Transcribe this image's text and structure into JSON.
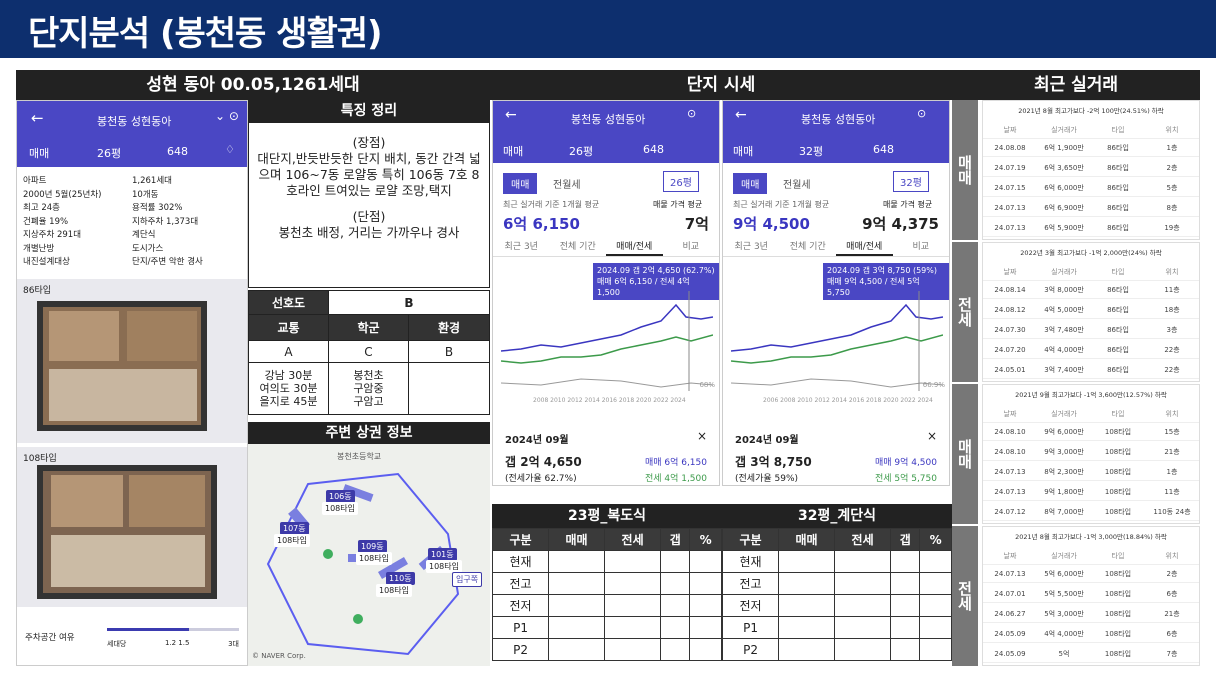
{
  "title": "단지분석 (봉천동 생활권)",
  "col1": {
    "header": "성현 동아 00.05,1261세대",
    "phone": {
      "title": "봉천동 성현동아",
      "deal": "매매",
      "size": "26평",
      "count": "648",
      "specs_left": [
        "아파트",
        "2000년 5월(25년차)",
        "최고 24층",
        "건폐율 19%",
        "지상주차 291대",
        "개별난방",
        "내진설계대상"
      ],
      "specs_right": [
        "1,261세대",
        "10개동",
        "용적률 302%",
        "지하주차 1,373대",
        "계단식",
        "도시가스",
        "단지/주변 악한 경사"
      ],
      "plan1": "86타입",
      "plan2": "108타입",
      "parking": "주차공간 여유",
      "parking_scale": [
        "세대당",
        "1.2 1.5",
        "3대"
      ]
    }
  },
  "col2": {
    "header": "특징 정리",
    "pros_title": "(장점)",
    "pros": "대단지,반듯반듯한 단지 배치, 동간 간격 넓으며 106~7동 로얄동 특히 106동 7호 8호라인 트여있는 로얄 조망,택지",
    "cons_title": "(단점)",
    "cons": "봉천초 배정, 거리는 가까우나 경사",
    "pref_label": "선호도",
    "pref_value": "B",
    "cat": [
      "교통",
      "학군",
      "환경"
    ],
    "grades": [
      "A",
      "C",
      "B"
    ],
    "traffic": [
      "강남 30분",
      "여의도 30분",
      "을지로 45분"
    ],
    "school": [
      "봉천초",
      "구암중",
      "구암고"
    ],
    "map_header": "주변 상권 정보",
    "map_labels": [
      "봉천초등학교",
      "106동",
      "108타입",
      "107동",
      "108타입",
      "109동",
      "108타입",
      "101동",
      "110동",
      "108타입",
      "108타입",
      "입구쪽"
    ],
    "map_credit": "© NAVER Corp."
  },
  "col3": {
    "header": "단지 시세",
    "p1": {
      "title": "봉천동 성현동아",
      "deal": "매매",
      "size": "26평",
      "count": "648",
      "tab1": "매매",
      "tab2": "전월세",
      "sel": "26평",
      "avg_label": "최근 실거래 기준 1개월 평균",
      "price": "6억 6,150",
      "ask_label": "매물 가격 평균",
      "ask": "7억",
      "tabs": [
        "최근 3년",
        "전체 기간",
        "매매/전세",
        "비교"
      ],
      "tip1": "2024.09 갭 2억 4,650 (62.7%)",
      "tip2": "매매 6억 6,150 / 전세 4억 1,500",
      "month": "2024년 09월",
      "gap": "갭 2억 4,650",
      "ratio": "(전세가율 62.7%)",
      "sale": "매매 6억 6,150",
      "jeonse": "전세 4억 1,500",
      "years": "2008 2010 2012 2014 2016 2018 2020 2022 2024",
      "pct": "68%",
      "table_title": "23평_복도식"
    },
    "p2": {
      "title": "봉천동 성현동아",
      "deal": "매매",
      "size": "32평",
      "count": "648",
      "tab1": "매매",
      "tab2": "전월세",
      "sel": "32평",
      "avg_label": "최근 실거래 기준 1개월 평균",
      "price": "9억 4,500",
      "ask_label": "매물 가격 평균",
      "ask": "9억 4,375",
      "tabs": [
        "최근 3년",
        "전체 기간",
        "매매/전세",
        "비교"
      ],
      "tip1": "2024.09 갭 3억 8,750 (59%)",
      "tip2": "매매 9억 4,500 / 전세 5억 5,750",
      "month": "2024년 09월",
      "gap": "갭 3억 8,750",
      "ratio": "(전세가율 59%)",
      "sale": "매매 9억 4,500",
      "jeonse": "전세 5억 5,750",
      "years": "2006 2008 2010 2012 2014 2016 2018 2020 2022 2024",
      "pct": "66.9%",
      "table_title": "32평_계단식"
    },
    "grid_head": [
      "구분",
      "매매",
      "전세",
      "갭",
      "%"
    ],
    "grid_rows": [
      "현재",
      "전고",
      "전저",
      "P1",
      "P2"
    ]
  },
  "col4": {
    "header": "최근 실거래",
    "side": [
      "매매",
      "전세",
      "매매",
      "전세"
    ],
    "blocks": [
      {
        "note": "2021년 8월 최고가보다 -2억 100만(24.51%) 하락",
        "rows": [
          [
            "24.08.08",
            "6억 1,900만",
            "86타입",
            "1층"
          ],
          [
            "24.07.19",
            "6억 3,650만",
            "86타입",
            "2층"
          ],
          [
            "24.07.15",
            "6억 6,000만",
            "86타입",
            "5층"
          ],
          [
            "24.07.13",
            "6억 6,900만",
            "86타입",
            "8층"
          ],
          [
            "24.07.13",
            "6억 5,900만",
            "86타입",
            "19층"
          ]
        ]
      },
      {
        "note": "2022년 3월 최고가보다 -1억 2,000만(24%) 하락",
        "rows": [
          [
            "24.08.14",
            "3억 8,000만",
            "86타입",
            "11층"
          ],
          [
            "24.08.12",
            "4억 5,000만",
            "86타입",
            "18층"
          ],
          [
            "24.07.30",
            "3억 7,480만",
            "86타입",
            "3층"
          ],
          [
            "24.07.20",
            "4억 4,000만",
            "86타입",
            "22층"
          ],
          [
            "24.05.01",
            "3억 7,400만",
            "86타입",
            "22층"
          ]
        ]
      },
      {
        "note": "2021년 9월 최고가보다 -1억 3,600만(12.57%) 하락",
        "rows": [
          [
            "24.08.10",
            "9억 6,000만",
            "108타입",
            "15층"
          ],
          [
            "24.08.10",
            "9억 3,000만",
            "108타입",
            "21층"
          ],
          [
            "24.07.13",
            "8억 2,300만",
            "108타입",
            "1층"
          ],
          [
            "24.07.13",
            "9억 1,800만",
            "108타입",
            "11층"
          ],
          [
            "24.07.12",
            "8억 7,000만",
            "108타입",
            "110동 24층"
          ]
        ]
      },
      {
        "note": "2021년 8월 최고가보다 -1억 3,000만(18.84%) 하락",
        "rows": [
          [
            "24.07.13",
            "5억 6,000만",
            "108타입",
            "2층"
          ],
          [
            "24.07.01",
            "5억 5,500만",
            "108타입",
            "6층"
          ],
          [
            "24.06.27",
            "5억 3,000만",
            "108타입",
            "21층"
          ],
          [
            "24.05.09",
            "4억 4,000만",
            "108타입",
            "6층"
          ],
          [
            "24.05.09",
            "5억",
            "108타입",
            "7층"
          ]
        ]
      }
    ],
    "cols": [
      "날짜",
      "실거래가",
      "타입",
      "위치"
    ]
  }
}
